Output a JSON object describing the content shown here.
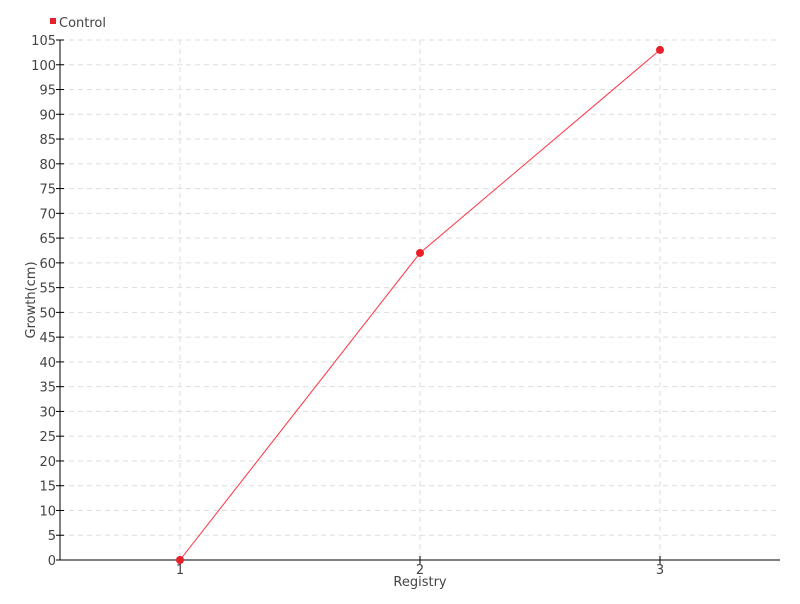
{
  "chart_data": {
    "type": "line",
    "title": "",
    "xlabel": "Registry",
    "ylabel": "Growth(cm)",
    "x": [
      1,
      2,
      3
    ],
    "xticks": [
      "1",
      "2",
      "3"
    ],
    "xlim": [
      0.5,
      3.5
    ],
    "ylim": [
      0,
      105
    ],
    "yticks": [
      0,
      5,
      10,
      15,
      20,
      25,
      30,
      35,
      40,
      45,
      50,
      55,
      60,
      65,
      70,
      75,
      80,
      85,
      90,
      95,
      100,
      105
    ],
    "grid": true,
    "legend": "top-left",
    "series": [
      {
        "name": "Control",
        "values": [
          0,
          62,
          103
        ],
        "color": "#e8202a"
      }
    ]
  }
}
